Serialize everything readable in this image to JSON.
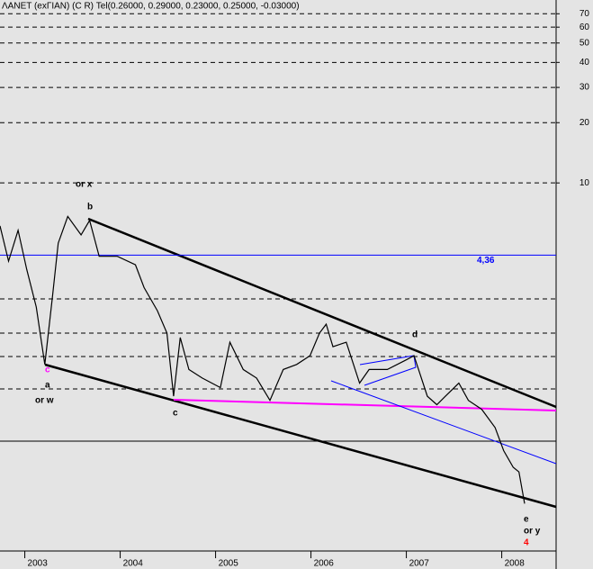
{
  "chart_data": {
    "type": "line",
    "title": "ΛΑΝΕΤ (exΓΙΑΝ) (C R) Tel(0.26000, 0.29000, 0.23000, 0.25000, -0.03000)",
    "log_scale": true,
    "xlim": [
      2002.74,
      2008.57
    ],
    "xticks": [
      2003,
      2004,
      2005,
      2006,
      2007,
      2008
    ],
    "ylim": [
      0.145,
      82
    ],
    "yticks": [
      10,
      20,
      30,
      40,
      50,
      60,
      70
    ],
    "grid": true,
    "series": [
      {
        "color": "#000000",
        "x": [
          2002.74,
          2002.83,
          2002.93,
          2003.02,
          2003.12,
          2003.21,
          2003.29,
          2003.35,
          2003.45,
          2003.59,
          2003.68,
          2003.78,
          2003.97,
          2004.16,
          2004.25,
          2004.39,
          2004.49,
          2004.56,
          2004.63,
          2004.72,
          2004.86,
          2005.05,
          2005.15,
          2005.29,
          2005.43,
          2005.57,
          2005.71,
          2005.85,
          2005.99,
          2006.09,
          2006.16,
          2006.23,
          2006.37,
          2006.51,
          2006.61,
          2006.8,
          2006.99,
          2007.08,
          2007.22,
          2007.32,
          2007.41,
          2007.55,
          2007.65,
          2007.79,
          2007.93,
          2008.02,
          2008.12,
          2008.18,
          2008.24
        ],
        "values": [
          6.1,
          4.07,
          5.8,
          3.7,
          2.4,
          1.24,
          2.7,
          5.0,
          6.8,
          5.5,
          6.5,
          4.3,
          4.3,
          3.9,
          3.0,
          2.3,
          1.78,
          0.86,
          1.69,
          1.17,
          1.06,
          0.95,
          1.6,
          1.17,
          1.06,
          0.82,
          1.17,
          1.24,
          1.37,
          1.78,
          1.97,
          1.52,
          1.6,
          1.0,
          1.17,
          1.17,
          1.3,
          1.37,
          0.86,
          0.78,
          0.86,
          1.0,
          0.82,
          0.74,
          0.6,
          0.46,
          0.38,
          0.36,
          0.25
        ]
      }
    ],
    "level": {
      "value": 4.36,
      "label": "4,36",
      "color": "#0000ff"
    },
    "annotations": [
      {
        "text": "or x",
        "color": "#000000"
      },
      {
        "text": "b",
        "color": "#000000"
      },
      {
        "text": "c",
        "color": "#ff00ff"
      },
      {
        "text": "a",
        "color": "#000000"
      },
      {
        "text": "or w",
        "color": "#000000"
      },
      {
        "text": "c",
        "color": "#000000"
      },
      {
        "text": "d",
        "color": "#000000"
      },
      {
        "text": "e",
        "color": "#000000"
      },
      {
        "text": "or y",
        "color": "#000000"
      },
      {
        "text": "4",
        "color": "#ff0000"
      }
    ]
  }
}
